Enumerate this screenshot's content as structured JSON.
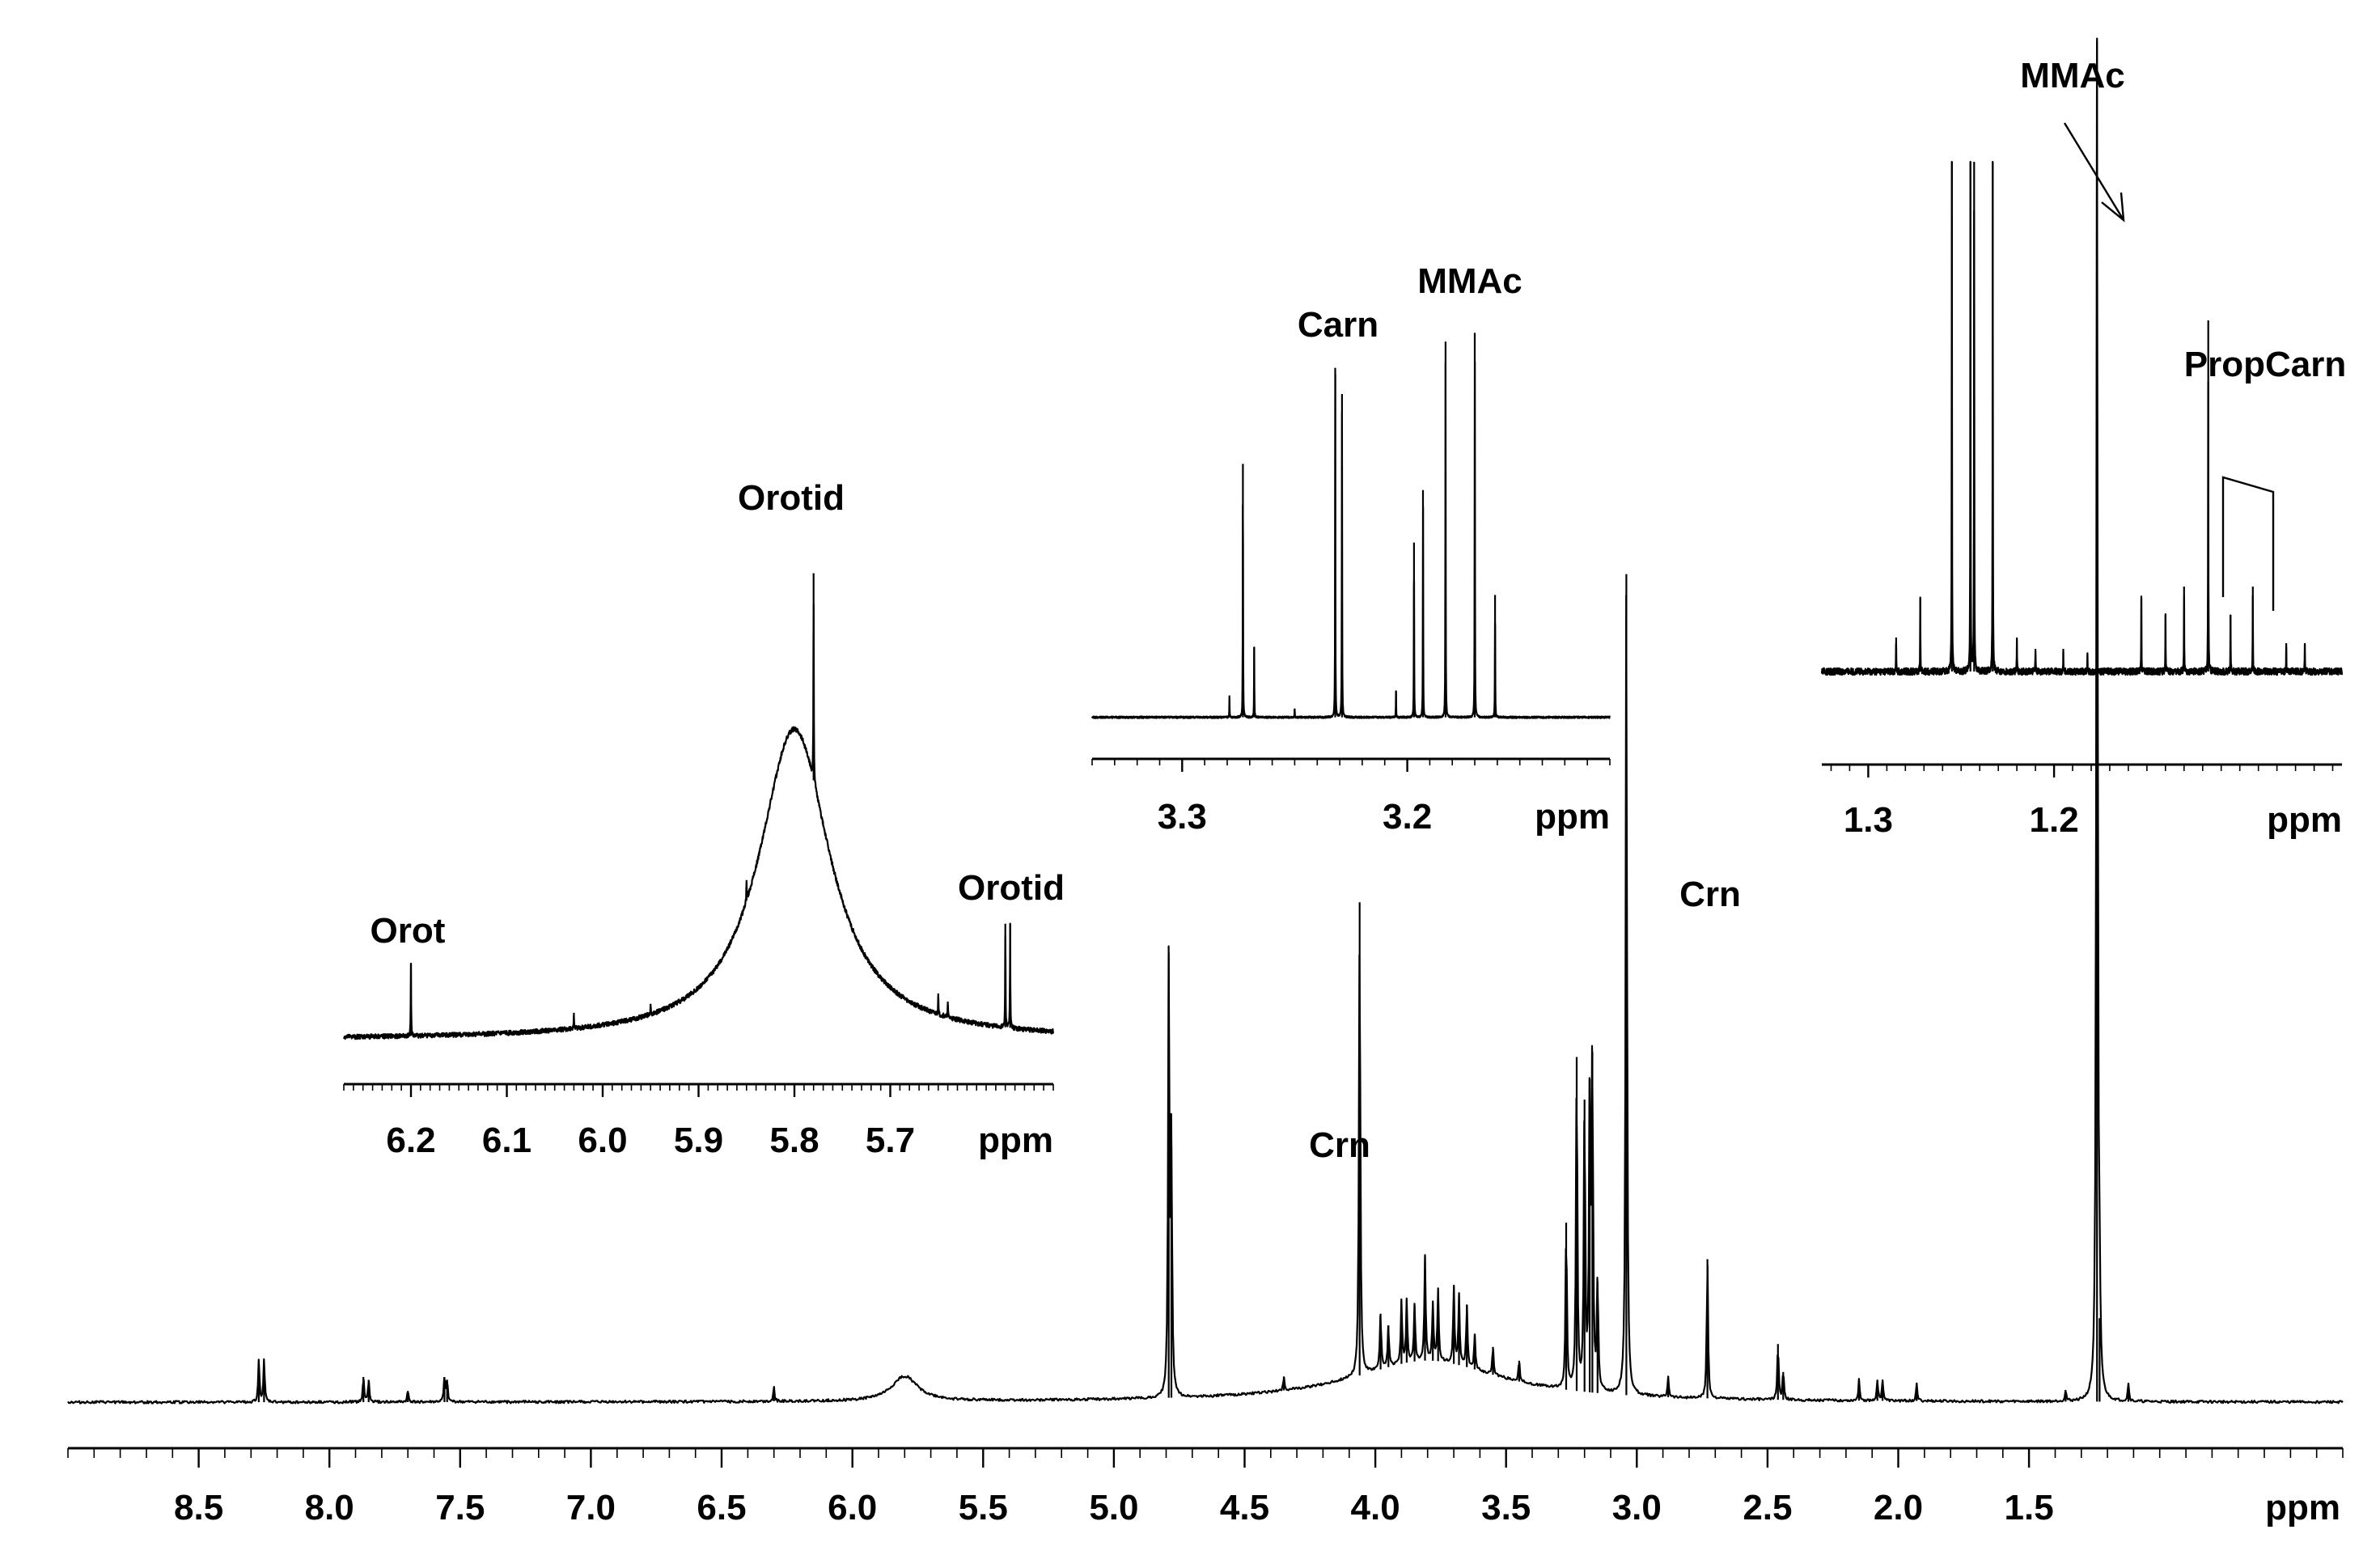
{
  "chart_data": {
    "type": "line",
    "title": "",
    "xlabel": "ppm",
    "ylabel": "",
    "main": {
      "name": "main-spectrum",
      "x_range_ppm": [
        9.0,
        0.3
      ],
      "ticks": [
        8.5,
        8.0,
        7.5,
        7.0,
        6.5,
        6.0,
        5.5,
        5.0,
        4.5,
        4.0,
        3.5,
        3.0,
        2.5,
        2.0,
        1.5
      ],
      "tick_labels": [
        "8.5",
        "8.0",
        "7.5",
        "7.0",
        "6.5",
        "6.0",
        "5.5",
        "5.0",
        "4.5",
        "4.0",
        "3.5",
        "3.0",
        "2.5",
        "2.0",
        "1.5"
      ],
      "unit_label": "ppm",
      "y_range": [
        0,
        100
      ],
      "baseline": 0.5,
      "humps": [
        {
          "ppm": 5.8,
          "height": 1.8,
          "width": 0.06
        },
        {
          "ppm": 3.8,
          "height": 3.0,
          "width": 0.35
        }
      ],
      "peaks": [
        {
          "ppm": 8.27,
          "height": 3.0
        },
        {
          "ppm": 8.25,
          "height": 3.0
        },
        {
          "ppm": 7.87,
          "height": 1.8
        },
        {
          "ppm": 7.85,
          "height": 1.6
        },
        {
          "ppm": 7.7,
          "height": 0.8
        },
        {
          "ppm": 7.56,
          "height": 1.8
        },
        {
          "ppm": 7.55,
          "height": 1.6
        },
        {
          "ppm": 6.3,
          "height": 1.0
        },
        {
          "ppm": 4.79,
          "height": 32.0
        },
        {
          "ppm": 4.78,
          "height": 18.0
        },
        {
          "ppm": 4.35,
          "height": 1.0
        },
        {
          "ppm": 4.06,
          "height": 34.0
        },
        {
          "ppm": 3.98,
          "height": 4.0
        },
        {
          "ppm": 3.95,
          "height": 3.0
        },
        {
          "ppm": 3.9,
          "height": 4.5
        },
        {
          "ppm": 3.88,
          "height": 4.5
        },
        {
          "ppm": 3.85,
          "height": 4.0
        },
        {
          "ppm": 3.81,
          "height": 7.5
        },
        {
          "ppm": 3.78,
          "height": 4.0
        },
        {
          "ppm": 3.76,
          "height": 5.0
        },
        {
          "ppm": 3.7,
          "height": 5.5
        },
        {
          "ppm": 3.68,
          "height": 5.0
        },
        {
          "ppm": 3.65,
          "height": 4.5
        },
        {
          "ppm": 3.62,
          "height": 2.5
        },
        {
          "ppm": 3.55,
          "height": 2.0
        },
        {
          "ppm": 3.45,
          "height": 1.5
        },
        {
          "ppm": 3.27,
          "height": 12.0
        },
        {
          "ppm": 3.23,
          "height": 24.0
        },
        {
          "ppm": 3.2,
          "height": 21.0
        },
        {
          "ppm": 3.18,
          "height": 22.5
        },
        {
          "ppm": 3.17,
          "height": 24.5
        },
        {
          "ppm": 3.15,
          "height": 8.0
        },
        {
          "ppm": 3.04,
          "height": 59.0
        },
        {
          "ppm": 2.88,
          "height": 1.5
        },
        {
          "ppm": 2.73,
          "height": 10.0
        },
        {
          "ppm": 2.46,
          "height": 4.0
        },
        {
          "ppm": 2.44,
          "height": 2.0
        },
        {
          "ppm": 2.15,
          "height": 1.5
        },
        {
          "ppm": 2.08,
          "height": 1.5
        },
        {
          "ppm": 2.06,
          "height": 1.5
        },
        {
          "ppm": 1.93,
          "height": 1.2
        },
        {
          "ppm": 1.36,
          "height": 0.8
        },
        {
          "ppm": 1.24,
          "height": 98.0
        },
        {
          "ppm": 1.23,
          "height": 6.0
        },
        {
          "ppm": 1.12,
          "height": 1.3
        }
      ]
    },
    "insets": [
      {
        "name": "inset-orotate",
        "x_range_ppm": [
          6.27,
          5.53
        ],
        "ticks": [
          6.2,
          6.1,
          6.0,
          5.9,
          5.8,
          5.7
        ],
        "tick_labels": [
          "6.2",
          "6.1",
          "6.0",
          "5.9",
          "5.8",
          "5.7"
        ],
        "unit_label": "ppm",
        "baseline": 2.0,
        "humps": [
          {
            "ppm": 5.8,
            "height": 60.0,
            "width": 0.045
          }
        ],
        "peaks": [
          {
            "ppm": 6.2,
            "height": 14.0
          },
          {
            "ppm": 6.03,
            "height": 3.0
          },
          {
            "ppm": 5.95,
            "height": 2.0
          },
          {
            "ppm": 5.85,
            "height": 4.0
          },
          {
            "ppm": 5.78,
            "height": 40.0
          },
          {
            "ppm": 5.65,
            "height": 4.0
          },
          {
            "ppm": 5.64,
            "height": 3.0
          },
          {
            "ppm": 5.58,
            "height": 20.0
          },
          {
            "ppm": 5.575,
            "height": 20.0
          }
        ]
      },
      {
        "name": "inset-carnitine",
        "x_range_ppm": [
          3.34,
          3.11
        ],
        "ticks": [
          3.3,
          3.2
        ],
        "tick_labels": [
          "3.3",
          "3.2"
        ],
        "unit_label": "ppm",
        "baseline": 1.0,
        "humps": [],
        "peaks": [
          {
            "ppm": 3.273,
            "height": 58.0
          },
          {
            "ppm": 3.268,
            "height": 16.0
          },
          {
            "ppm": 3.279,
            "height": 5.0
          },
          {
            "ppm": 3.232,
            "height": 80.0
          },
          {
            "ppm": 3.229,
            "height": 74.0
          },
          {
            "ppm": 3.197,
            "height": 40.0
          },
          {
            "ppm": 3.193,
            "height": 52.0
          },
          {
            "ppm": 3.183,
            "height": 86.0
          },
          {
            "ppm": 3.17,
            "height": 88.0
          },
          {
            "ppm": 3.161,
            "height": 28.0
          },
          {
            "ppm": 3.205,
            "height": 6.0
          },
          {
            "ppm": 3.25,
            "height": 2.0
          }
        ]
      },
      {
        "name": "inset-methylmalonate",
        "x_range_ppm": [
          1.325,
          1.045
        ],
        "ticks": [
          1.3,
          1.2
        ],
        "tick_labels": [
          "1.3",
          "1.2"
        ],
        "unit_label": "ppm",
        "baseline": 10.0,
        "humps": [],
        "peaks": [
          {
            "ppm": 1.255,
            "height": 100.0
          },
          {
            "ppm": 1.245,
            "height": 100.0
          },
          {
            "ppm": 1.243,
            "height": 100.0
          },
          {
            "ppm": 1.233,
            "height": 100.0
          },
          {
            "ppm": 1.272,
            "height": 13.0
          },
          {
            "ppm": 1.285,
            "height": 6.0
          },
          {
            "ppm": 1.22,
            "height": 6.0
          },
          {
            "ppm": 1.21,
            "height": 4.0
          },
          {
            "ppm": 1.195,
            "height": 4.0
          },
          {
            "ppm": 1.182,
            "height": 3.0
          },
          {
            "ppm": 1.153,
            "height": 13.0
          },
          {
            "ppm": 1.14,
            "height": 10.0
          },
          {
            "ppm": 1.13,
            "height": 15.0
          },
          {
            "ppm": 1.117,
            "height": 62.0
          },
          {
            "ppm": 1.105,
            "height": 10.0
          },
          {
            "ppm": 1.093,
            "height": 15.0
          },
          {
            "ppm": 1.075,
            "height": 5.0
          },
          {
            "ppm": 1.065,
            "height": 5.0
          }
        ]
      }
    ],
    "annotations": [
      {
        "id": "orot",
        "text": "Orot",
        "ppm": 6.2
      },
      {
        "id": "orotid-center",
        "text": "Orotid",
        "ppm": 5.78
      },
      {
        "id": "orotid-right",
        "text": "Orotid",
        "ppm": 5.57
      },
      {
        "id": "carn",
        "text": "Carn",
        "ppm": 3.231
      },
      {
        "id": "mmac-inset",
        "text": "MMAc",
        "ppm": 3.176
      },
      {
        "id": "crn-main",
        "text": "Crn",
        "ppm": 4.06
      },
      {
        "id": "crn-inset",
        "text": "Crn",
        "ppm": 3.04
      },
      {
        "id": "mmac-main",
        "text": "MMAc",
        "ppm": 1.24
      },
      {
        "id": "propcarn",
        "text": "PropCarn",
        "ppm": 1.117
      }
    ]
  }
}
